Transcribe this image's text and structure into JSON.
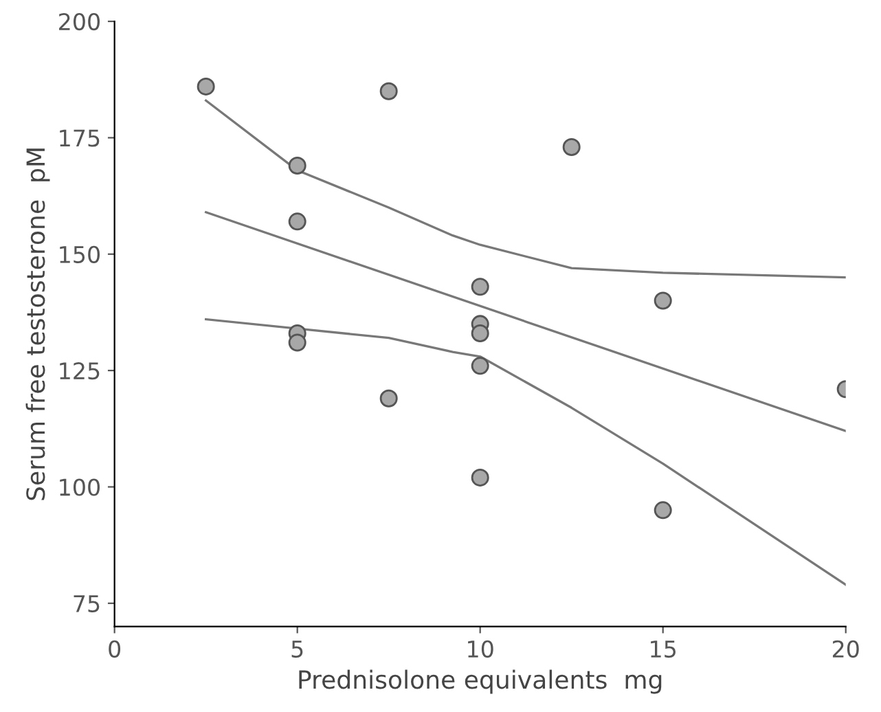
{
  "chart_data": {
    "type": "scatter",
    "xlabel": "Prednisolone equivalents  mg",
    "ylabel": "Serum free testosterone  pM",
    "xlim": [
      0,
      20
    ],
    "ylim": [
      70,
      200
    ],
    "xticks": [
      0,
      5,
      10,
      15,
      20
    ],
    "yticks": [
      75,
      100,
      125,
      150,
      175,
      200
    ],
    "grid": false,
    "legend": false,
    "series": [
      {
        "marker": "circle",
        "color": "#a8a8a8",
        "x": [
          2.5,
          5,
          5,
          5,
          5,
          7.5,
          7.5,
          10,
          10,
          10,
          10,
          10,
          12.5,
          15,
          15,
          20
        ],
        "values": [
          186,
          169,
          157,
          133,
          131,
          185,
          119,
          143,
          135,
          133,
          126,
          102,
          173,
          140,
          95,
          121
        ]
      },
      {
        "type": "line",
        "color": "#787878",
        "x": [
          2.5,
          20
        ],
        "values": [
          159,
          112
        ]
      },
      {
        "type": "line",
        "color": "#787878",
        "x": [
          2.5,
          5,
          7.5,
          9.25,
          10,
          12.5,
          15,
          20
        ],
        "values": [
          183,
          168,
          160,
          154,
          152,
          147,
          146,
          145
        ]
      },
      {
        "type": "line",
        "color": "#787878",
        "x": [
          2.5,
          5,
          7.5,
          9.25,
          10,
          12.5,
          15,
          20
        ],
        "values": [
          136,
          134,
          132,
          129,
          128,
          117,
          105,
          79
        ]
      }
    ]
  }
}
